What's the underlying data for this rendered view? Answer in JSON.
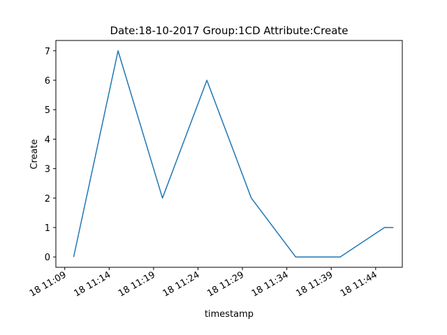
{
  "chart_data": {
    "type": "line",
    "title": "Date:18-10-2017  Group:1CD Attribute:Create",
    "xlabel": "timestamp",
    "ylabel": "Create",
    "x_ticks": [
      {
        "time": "11:09",
        "label": "18 11:09"
      },
      {
        "time": "11:14",
        "label": "18 11:14"
      },
      {
        "time": "11:19",
        "label": "18 11:19"
      },
      {
        "time": "11:24",
        "label": "18 11:24"
      },
      {
        "time": "11:29",
        "label": "18 11:29"
      },
      {
        "time": "11:34",
        "label": "18 11:34"
      },
      {
        "time": "11:39",
        "label": "18 11:39"
      },
      {
        "time": "11:44",
        "label": "18 11:44"
      }
    ],
    "xlim": [
      "11:08",
      "11:47"
    ],
    "ylim": [
      -0.35,
      7.35
    ],
    "y_ticks": [
      0,
      1,
      2,
      3,
      4,
      5,
      6,
      7
    ],
    "grid": false,
    "colors": {
      "line": "#1f77b4"
    },
    "series": [
      {
        "x": [
          "11:10",
          "11:15",
          "11:20",
          "11:25",
          "11:30",
          "11:35",
          "11:40",
          "11:45",
          "11:46"
        ],
        "values": [
          0,
          7,
          2,
          6,
          2,
          0,
          0,
          1,
          1
        ]
      }
    ]
  }
}
